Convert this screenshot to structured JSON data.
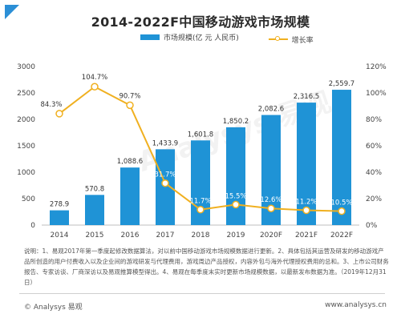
{
  "title": "2014-2022F中国移动游戏市场规模",
  "legend": {
    "bar_label": "市场规模(亿 元 人民币)",
    "line_label": "增长率"
  },
  "colors": {
    "bar": "#1f93d6",
    "line": "#f0b020",
    "corner": "#2b8fd6"
  },
  "chart_data": {
    "type": "bar",
    "categories": [
      "2014",
      "2015",
      "2016",
      "2017",
      "2018",
      "2019",
      "2020F",
      "2021F",
      "2022F"
    ],
    "series": [
      {
        "name": "市场规模(亿 元 人民币)",
        "type": "bar",
        "axis": "left",
        "values": [
          278.9,
          570.8,
          1088.6,
          1433.9,
          1601.8,
          1850.2,
          2082.6,
          2316.5,
          2559.7
        ],
        "labels": [
          "278.9",
          "570.8",
          "1,088.6",
          "1,433.9",
          "1,601.8",
          "1,850.2",
          "2,082.6",
          "2,316.5",
          "2,559.7"
        ]
      },
      {
        "name": "增长率",
        "type": "line",
        "axis": "right",
        "values": [
          84.3,
          104.7,
          90.7,
          31.7,
          11.7,
          15.5,
          12.6,
          11.2,
          10.5
        ],
        "labels": [
          "84.3%",
          "104.7%",
          "90.7%",
          "31.7%",
          "11.7%",
          "15.5%",
          "12.6%",
          "11.2%",
          "10.5%"
        ]
      }
    ],
    "y_left": {
      "ylim": [
        0,
        3000
      ],
      "ticks": [
        "0",
        "500",
        "1000",
        "1500",
        "2000",
        "2500",
        "3000"
      ]
    },
    "y_right": {
      "ylim": [
        0,
        120
      ],
      "ticks": [
        "0%",
        "20%",
        "40%",
        "60%",
        "80%",
        "100%",
        "120%"
      ]
    },
    "grid": false,
    "legend_position": "top"
  },
  "note": "说明：1、易观2017年第一季度起修改数据算法，对以前中国移动游戏市场规模数据进行更新。2、具体包括其运营及研发的移动游戏产品所创造的用户付费收入以及企业间的游戏研发与代理费用，游戏周边产品授权，内容外包与海外代理授权费用的总和。3、上市公司财务报告、专家访谈、厂商深访以及易观推算模型得出。4、易观在每季度末实时更新市场规模数据，以最新发布数据为准。（2019年12月31日）",
  "footer": {
    "left": "© Analysys 易观",
    "right": "www.analysys.cn"
  }
}
